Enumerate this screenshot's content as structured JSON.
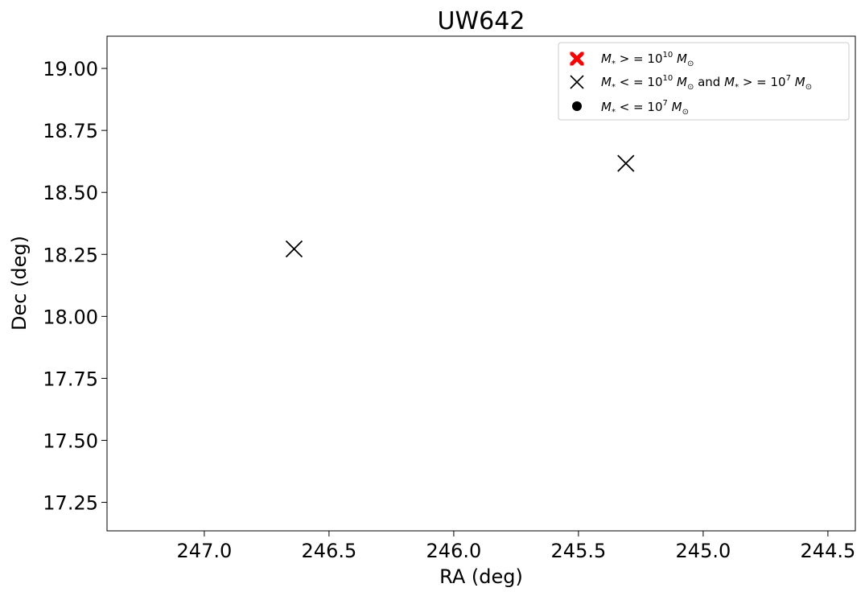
{
  "chart_data": {
    "type": "scatter",
    "title": "UW642",
    "xlabel": "RA (deg)",
    "ylabel": "Dec (deg)",
    "xlim": [
      247.39,
      244.39
    ],
    "ylim": [
      17.135,
      19.13
    ],
    "x_inverted": true,
    "xticks": [
      247.0,
      246.5,
      246.0,
      245.5,
      245.0,
      244.5
    ],
    "xtick_labels": [
      "247.0",
      "246.5",
      "246.0",
      "245.5",
      "245.0",
      "244.5"
    ],
    "yticks": [
      17.25,
      17.5,
      17.75,
      18.0,
      18.25,
      18.5,
      18.75,
      19.0
    ],
    "ytick_labels": [
      "17.25",
      "17.50",
      "17.75",
      "18.00",
      "18.25",
      "18.50",
      "18.75",
      "19.00"
    ],
    "grid": false,
    "legend_position": "top-right",
    "series": [
      {
        "name": "M* >= 10^10 M_sun",
        "marker": "X",
        "color": "#ff0000",
        "points": []
      },
      {
        "name": "M* <= 10^10 M_sun and M* >= 10^7 M_sun",
        "marker": "x",
        "color": "#000000",
        "points": [
          {
            "x": 246.64,
            "y": 18.272
          },
          {
            "x": 245.31,
            "y": 18.617
          }
        ]
      },
      {
        "name": "M* <= 10^7 M_sun",
        "marker": "o",
        "color": "#000000",
        "points": []
      }
    ]
  }
}
